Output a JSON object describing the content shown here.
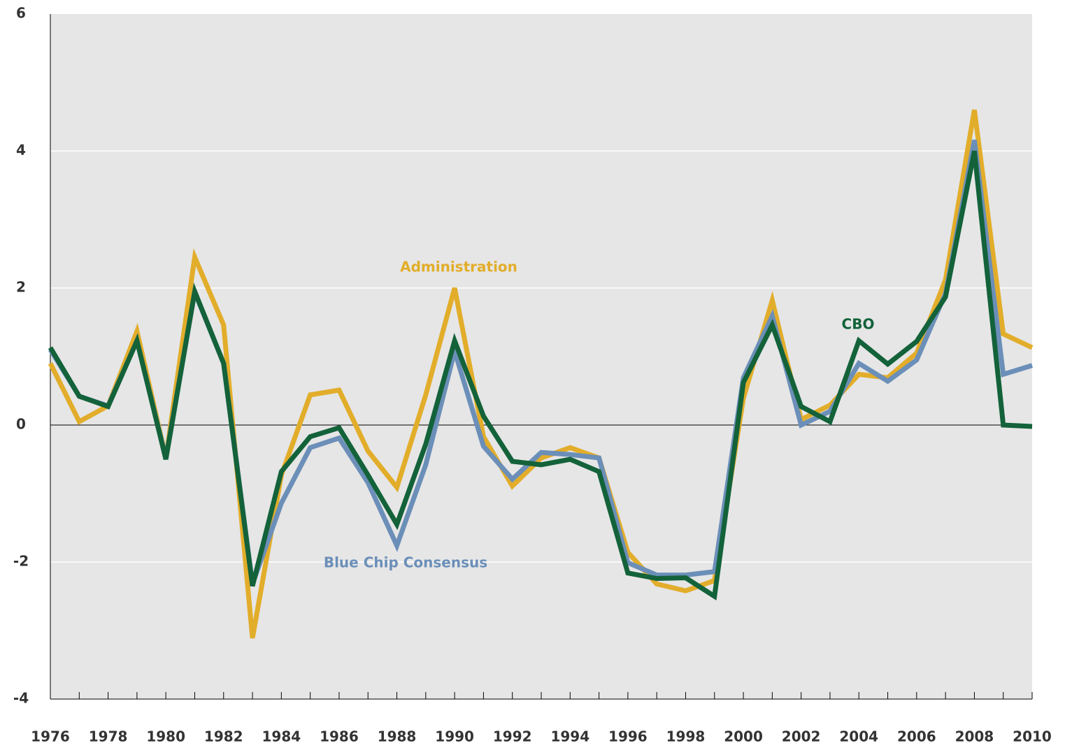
{
  "chart_data": {
    "type": "line",
    "x": [
      1976,
      1977,
      1978,
      1979,
      1980,
      1981,
      1982,
      1983,
      1984,
      1985,
      1986,
      1987,
      1988,
      1989,
      1990,
      1991,
      1992,
      1993,
      1994,
      1995,
      1996,
      1997,
      1998,
      1999,
      2000,
      2001,
      2002,
      2003,
      2004,
      2005,
      2006,
      2007,
      2008,
      2009,
      2010
    ],
    "xlim": [
      1976,
      2010
    ],
    "xticks": [
      1976,
      1978,
      1980,
      1982,
      1984,
      1986,
      1988,
      1990,
      1992,
      1994,
      1996,
      1998,
      2000,
      2002,
      2004,
      2006,
      2008,
      2010
    ],
    "ylim": [
      -4,
      6
    ],
    "yticks": [
      -4,
      -2,
      0,
      2,
      4,
      6
    ],
    "grid": true,
    "series": [
      {
        "name": "Administration",
        "color": "#e2ad2a",
        "values": [
          0.9,
          0.05,
          0.28,
          1.37,
          -0.48,
          2.45,
          1.46,
          -3.11,
          -0.73,
          0.44,
          0.51,
          -0.38,
          -0.91,
          0.44,
          2.0,
          -0.17,
          -0.89,
          -0.48,
          -0.33,
          -0.48,
          -1.86,
          -2.32,
          -2.42,
          -2.27,
          0.39,
          1.82,
          0.08,
          0.29,
          0.74,
          0.69,
          1.05,
          2.12,
          4.6,
          1.33,
          1.13
        ]
      },
      {
        "name": "Blue Chip Consensus",
        "color": "#6b8fb8",
        "values": [
          1.1,
          0.42,
          0.28,
          1.23,
          -0.48,
          1.94,
          0.9,
          -2.32,
          -1.14,
          -0.33,
          -0.19,
          -0.84,
          -1.76,
          -0.58,
          1.08,
          -0.31,
          -0.79,
          -0.4,
          -0.43,
          -0.48,
          -2.01,
          -2.19,
          -2.19,
          -2.14,
          0.69,
          1.59,
          0.0,
          0.2,
          0.9,
          0.64,
          0.95,
          1.92,
          4.16,
          0.74,
          0.87
        ]
      },
      {
        "name": "CBO",
        "color": "#13623a",
        "values": [
          1.13,
          0.42,
          0.27,
          1.23,
          -0.5,
          1.95,
          0.9,
          -2.35,
          -0.68,
          -0.17,
          -0.04,
          -0.73,
          -1.45,
          -0.28,
          1.23,
          0.13,
          -0.53,
          -0.58,
          -0.5,
          -0.68,
          -2.16,
          -2.24,
          -2.23,
          -2.5,
          0.62,
          1.46,
          0.27,
          0.05,
          1.23,
          0.89,
          1.22,
          1.87,
          4.0,
          0.0,
          -0.02
        ]
      }
    ]
  }
}
